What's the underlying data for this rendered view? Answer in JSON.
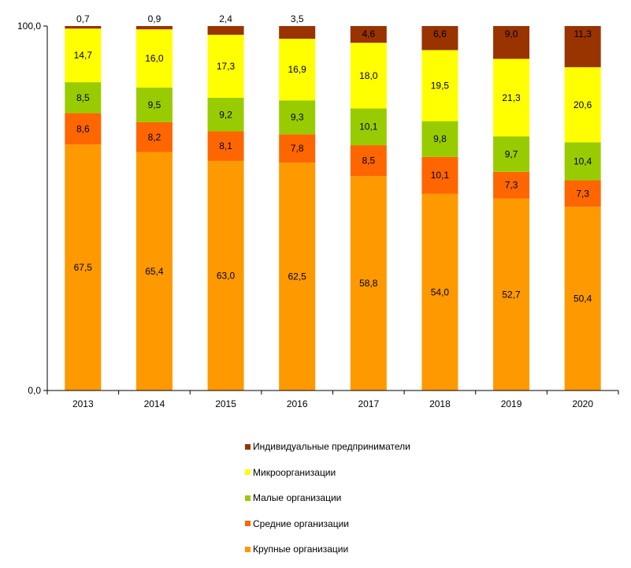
{
  "chart_data": {
    "type": "bar",
    "stacked": true,
    "categories": [
      "2013",
      "2014",
      "2015",
      "2016",
      "2017",
      "2018",
      "2019",
      "2020"
    ],
    "ylim": [
      0,
      100
    ],
    "yticks": [
      "0,0",
      "100,0"
    ],
    "series": [
      {
        "name": "Крупные организации",
        "color": "#FF9900",
        "values": [
          67.5,
          65.4,
          63.0,
          62.5,
          58.8,
          54.0,
          52.7,
          50.4
        ],
        "labels": [
          "67,5",
          "65,4",
          "63,0",
          "62,5",
          "58,8",
          "54,0",
          "52,7",
          "50,4"
        ]
      },
      {
        "name": "Средние организации",
        "color": "#FF6600",
        "values": [
          8.6,
          8.2,
          8.1,
          7.8,
          8.5,
          10.1,
          7.3,
          7.3
        ],
        "labels": [
          "8,6",
          "8,2",
          "8,1",
          "7,8",
          "8,5",
          "10,1",
          "7,3",
          "7,3"
        ]
      },
      {
        "name": "Малые организации",
        "color": "#99CC00",
        "values": [
          8.5,
          9.5,
          9.2,
          9.3,
          10.1,
          9.8,
          9.7,
          10.4
        ],
        "labels": [
          "8,5",
          "9,5",
          "9,2",
          "9,3",
          "10,1",
          "9,8",
          "9,7",
          "10,4"
        ]
      },
      {
        "name": "Микроорганизации",
        "color": "#FFFF00",
        "values": [
          14.7,
          16.0,
          17.3,
          16.9,
          18.0,
          19.5,
          21.3,
          20.6
        ],
        "labels": [
          "14,7",
          "16,0",
          "17,3",
          "16,9",
          "18,0",
          "19,5",
          "21,3",
          "20,6"
        ]
      },
      {
        "name": "Индивидуальные предприниматели",
        "color": "#993300",
        "values": [
          0.7,
          0.9,
          2.4,
          3.5,
          4.6,
          6.6,
          9.0,
          11.3
        ],
        "labels": [
          "0,7",
          "0,9",
          "2,4",
          "3,5",
          "4,6",
          "6,6",
          "9,0",
          "11,3"
        ]
      }
    ],
    "legend_order": [
      4,
      3,
      2,
      1,
      0
    ],
    "legend_position": "bottom",
    "grid": false
  }
}
